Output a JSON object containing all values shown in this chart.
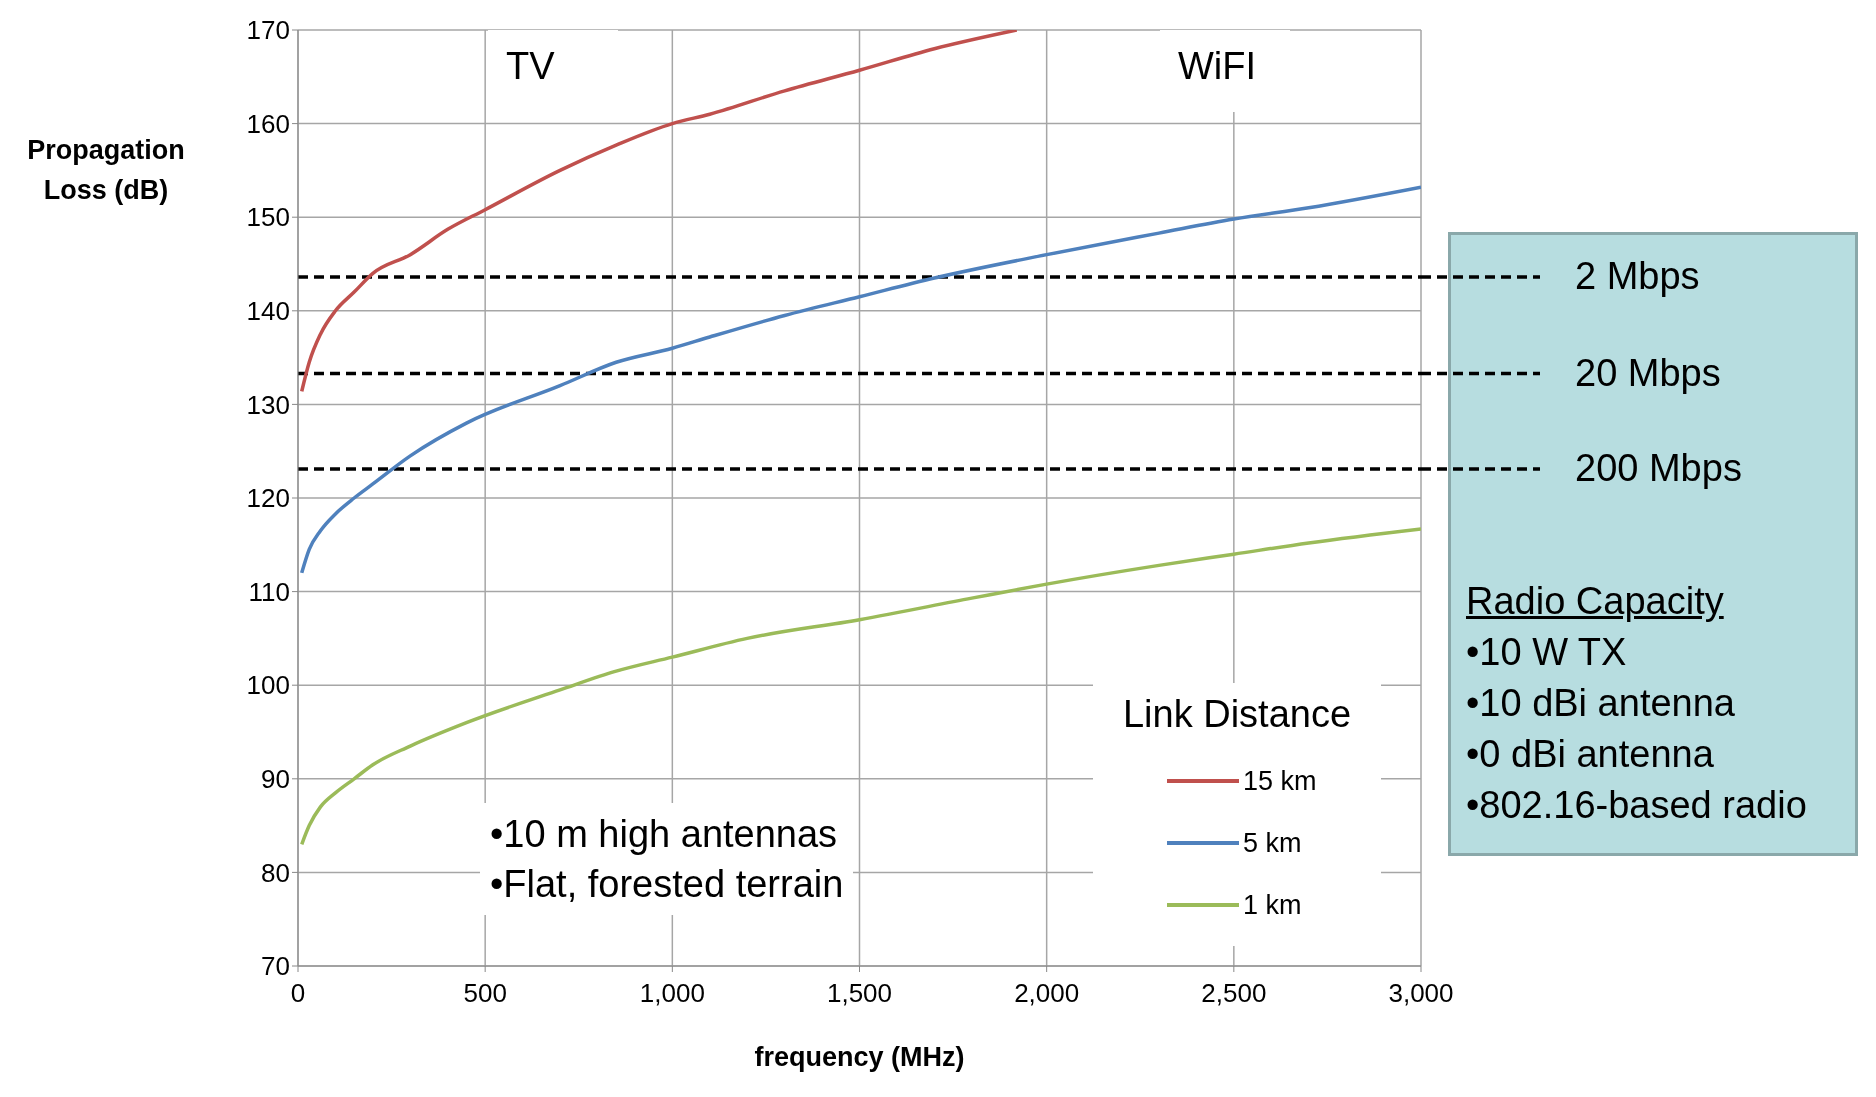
{
  "chart_data": {
    "type": "line",
    "xlabel": "frequency (MHz)",
    "ylabel": "Propagation Loss (dB)",
    "legend_title": "Link Distance",
    "legend": "bottom right",
    "grid": true,
    "marker": "none",
    "line_style": "solid",
    "xlim": [
      0,
      3000
    ],
    "xticks": [
      0,
      500,
      {
        "value": 1000,
        "label": "1,000"
      },
      {
        "value": 1500,
        "label": "1,500"
      },
      {
        "value": 2000,
        "label": "2,000"
      },
      {
        "value": 2500,
        "label": "2,500"
      },
      {
        "value": 3000,
        "label": "3,000"
      }
    ],
    "ylim": [
      70,
      170
    ],
    "yticks": [
      70,
      80,
      90,
      100,
      110,
      120,
      130,
      140,
      150,
      160,
      170
    ],
    "series": [
      {
        "name": "15 km",
        "color": "#c0504d",
        "x": [
          10,
          30,
          60,
          100,
          150,
          200,
          300,
          400,
          500,
          700,
          850,
          1000,
          1100,
          1300,
          1500,
          1700,
          1920
        ],
        "values": [
          131.4,
          134.5,
          137.5,
          140,
          142,
          144,
          146,
          148.7,
          150.8,
          155,
          157.7,
          160,
          161,
          163.5,
          165.7,
          168,
          170
        ]
      },
      {
        "name": "5 km",
        "color": "#4f81bd",
        "x": [
          10,
          30,
          60,
          100,
          150,
          200,
          300,
          450,
          700,
          850,
          1000,
          1100,
          1300,
          1500,
          1700,
          2000,
          2300,
          2500,
          2700,
          3000
        ],
        "values": [
          112,
          114.5,
          116.5,
          118.3,
          120,
          121.5,
          124.5,
          128,
          132,
          134.5,
          136,
          137.2,
          139.5,
          141.5,
          143.5,
          146,
          148.3,
          149.8,
          151,
          153.2
        ]
      },
      {
        "name": "1 km",
        "color": "#9bbb59",
        "x": [
          10,
          30,
          60,
          100,
          150,
          200,
          300,
          450,
          700,
          850,
          1000,
          1200,
          1500,
          1800,
          2000,
          2300,
          2500,
          2700,
          3000
        ],
        "values": [
          83,
          85,
          87,
          88.5,
          90,
          91.5,
          93.5,
          96,
          99.5,
          101.5,
          103,
          105,
          107,
          109.3,
          110.8,
          112.8,
          114,
          115.2,
          116.7
        ]
      }
    ],
    "ref_lines": [
      {
        "axis": "y",
        "value": 143.6,
        "label": "2 Mbps",
        "color": "#000000",
        "line_style": "dashed"
      },
      {
        "axis": "y",
        "value": 133.3,
        "label": "20 Mbps",
        "color": "#000000",
        "line_style": "dashed"
      },
      {
        "axis": "y",
        "value": 123.1,
        "label": "200 Mbps",
        "color": "#000000",
        "line_style": "dashed"
      }
    ],
    "annotations": [
      "TV",
      "WiFI",
      "•10 m high antennas",
      "•Flat, forested terrain",
      "Radio Capacity",
      "•10 W TX",
      "•10 dBi antenna",
      "•0 dBi antenna",
      "•802.16-based radio"
    ]
  }
}
